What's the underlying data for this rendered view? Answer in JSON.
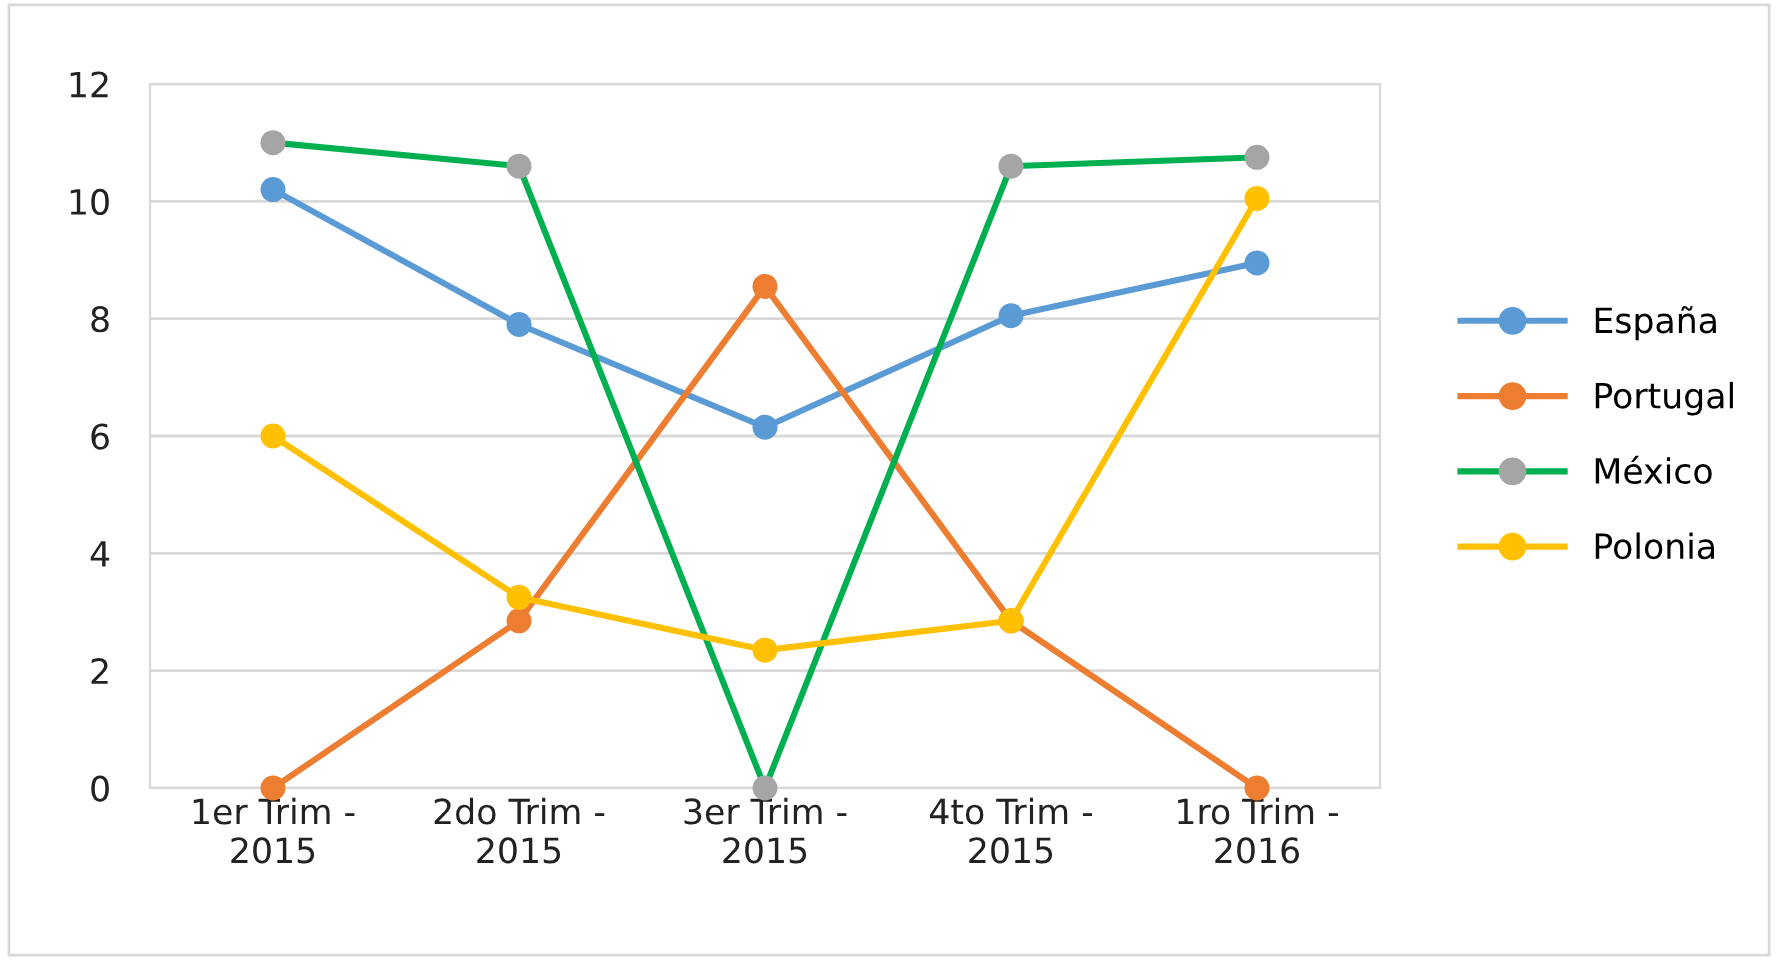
{
  "chart_data": {
    "type": "line",
    "categories": [
      "1er Trim -\n2015",
      "2do Trim -\n2015",
      "3er Trim -\n2015",
      "4to Trim -\n2015",
      "1ro Trim -\n2016"
    ],
    "series": [
      {
        "name": "España",
        "color": "#5b9bd5",
        "values": [
          10.2,
          7.9,
          6.15,
          8.05,
          8.95
        ]
      },
      {
        "name": "Portugal",
        "color": "#ed7d31",
        "values": [
          0,
          2.85,
          8.55,
          2.85,
          0
        ]
      },
      {
        "name": "México",
        "color": "#00b050",
        "colors": [
          "#a5a5a5",
          "#a5a5a5",
          "#a5a5a5",
          "#a5a5a5",
          "#a5a5a5"
        ],
        "values": [
          11,
          10.6,
          0,
          10.6,
          10.75
        ]
      },
      {
        "name": "Polonia",
        "color": "#ffc000",
        "values": [
          6,
          3.25,
          2.35,
          2.85,
          10.05
        ]
      }
    ],
    "ylim": [
      0,
      12
    ],
    "yticks": [
      0,
      2,
      4,
      6,
      8,
      10,
      12
    ],
    "grid": "y",
    "legend": "right",
    "marker": "circle",
    "line_style": "solid"
  }
}
